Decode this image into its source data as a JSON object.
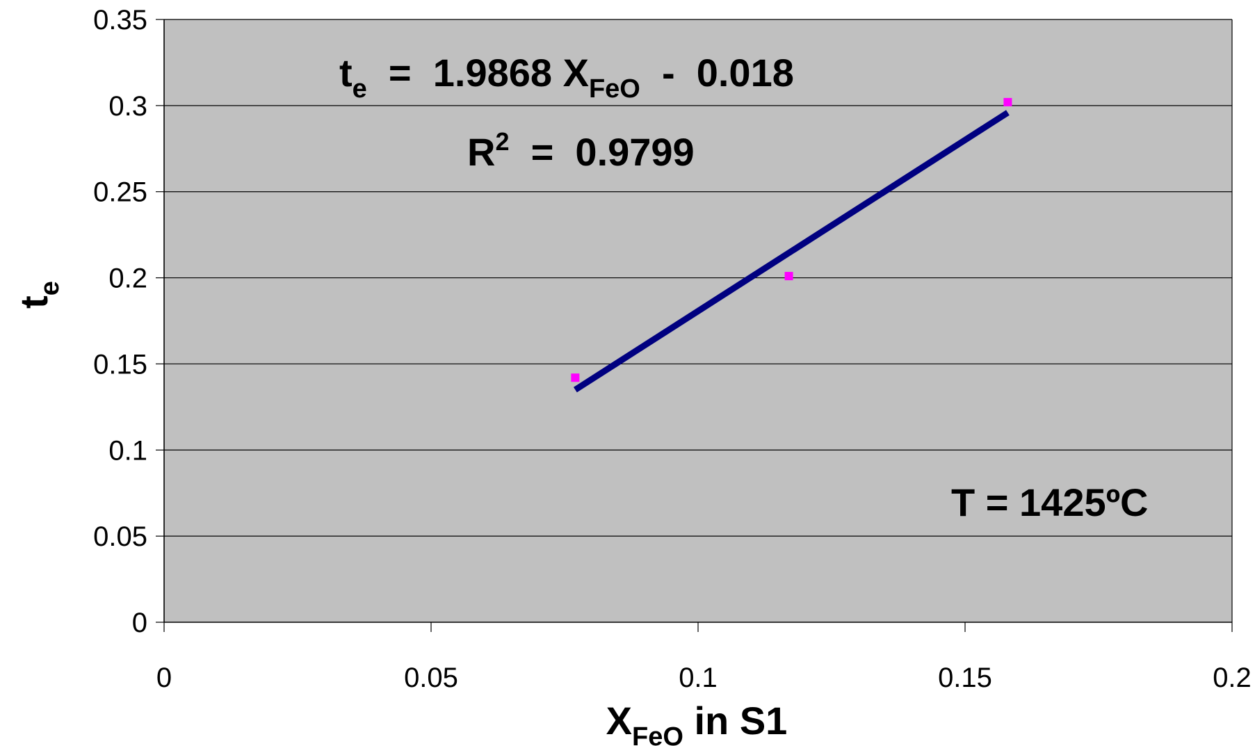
{
  "chart_data": {
    "type": "scatter",
    "xlabel": {
      "main": "X",
      "sub": "FeO",
      "rest": " in S1"
    },
    "ylabel": {
      "main": "t",
      "sub": "e"
    },
    "xlim": [
      0,
      0.2
    ],
    "ylim": [
      0,
      0.35
    ],
    "x_ticks": [
      "0",
      "0.05",
      "0.1",
      "0.15",
      "0.2"
    ],
    "y_ticks": [
      "0",
      "0.05",
      "0.1",
      "0.15",
      "0.2",
      "0.25",
      "0.3",
      "0.35"
    ],
    "grid": {
      "horizontal": true,
      "vertical": false
    },
    "plot_background": "#c0c0c0",
    "points": [
      {
        "x": 0.077,
        "y": 0.142
      },
      {
        "x": 0.117,
        "y": 0.201
      },
      {
        "x": 0.158,
        "y": 0.302
      }
    ],
    "point_color": "#ff00ff",
    "trendline": {
      "slope": 1.9868,
      "intercept": -0.018,
      "x_range": [
        0.077,
        0.158
      ],
      "color": "#000080"
    },
    "annotations": {
      "equation": {
        "lhs_main": "t",
        "lhs_sub": "e",
        "middle": "  =  1.9868 X",
        "var_sub": "FeO",
        "rhs": "  -  0.018"
      },
      "r_squared": {
        "main": "R",
        "sup": "2",
        "rest": "  =  0.9799"
      },
      "temperature": "T = 1425ºC"
    }
  }
}
